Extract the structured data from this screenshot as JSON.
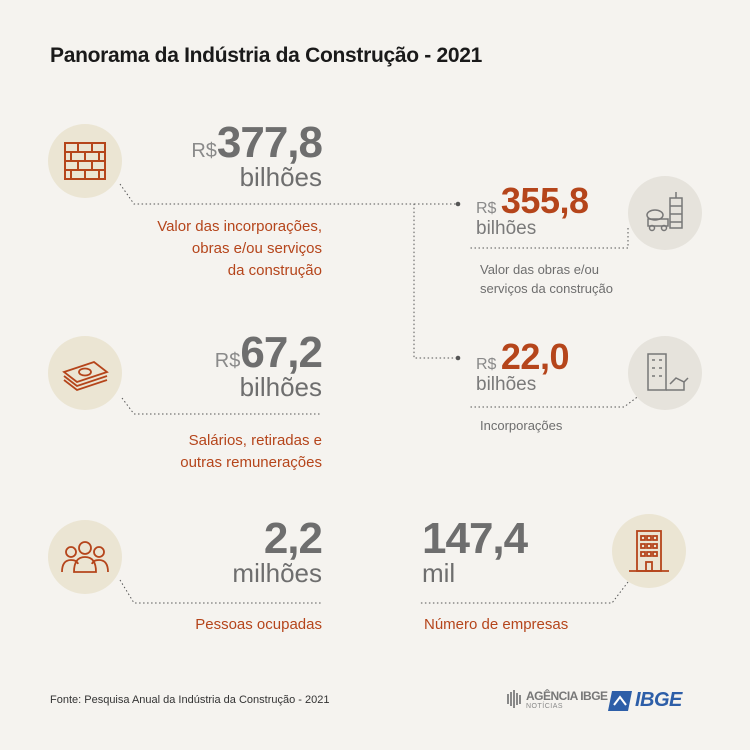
{
  "title": "Panorama da Indústria da Construção - 2021",
  "items": {
    "incorporacoes_obras": {
      "currency": "R$",
      "value": "377,8",
      "unit": "bilhões",
      "desc": [
        "Valor das incorporações,",
        "obras e/ou serviços",
        "da construção"
      ],
      "icon": "bricks-icon"
    },
    "obras_servicos": {
      "currency": "R$",
      "value": "355,8",
      "unit": "bilhões",
      "desc": [
        "Valor das obras e/ou",
        "serviços da construção"
      ],
      "icon": "construction-site-icon"
    },
    "incorporacoes": {
      "currency": "R$",
      "value": "22,0",
      "unit": "bilhões",
      "desc": [
        "Incorporações"
      ],
      "icon": "building-crane-icon"
    },
    "salarios": {
      "currency": "R$",
      "value": "67,2",
      "unit": "bilhões",
      "desc": [
        "Salários, retiradas e",
        "outras remunerações"
      ],
      "icon": "money-stack-icon"
    },
    "pessoas": {
      "value": "2,2",
      "unit": "milhões",
      "desc": [
        "Pessoas ocupadas"
      ],
      "icon": "people-icon"
    },
    "empresas": {
      "value": "147,4",
      "unit": "mil",
      "desc": [
        "Número de empresas"
      ],
      "icon": "office-building-icon"
    }
  },
  "footer": {
    "source": "Fonte: Pesquisa Anual da Indústria da Construção - 2021",
    "logo_agencia_top": "AGÊNCIA IBGE",
    "logo_agencia_bottom": "NOTÍCIAS",
    "logo_ibge": "IBGE"
  },
  "colors": {
    "accent": "#b5451b",
    "circle": "#ebe5d3",
    "text_grey": "#6e6e6e",
    "ibge_blue": "#2d5ea8"
  }
}
